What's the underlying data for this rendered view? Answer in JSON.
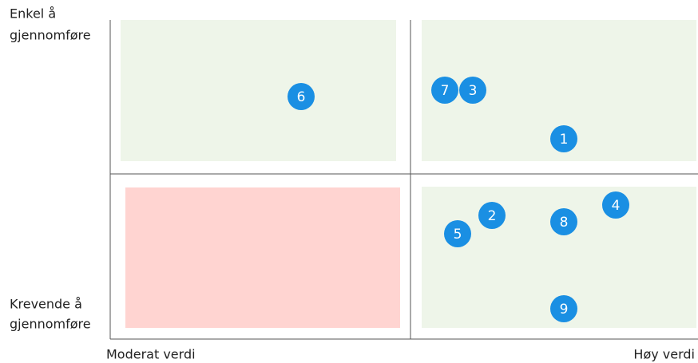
{
  "axes": {
    "y_top": [
      "Enkel å",
      "gjennomføre"
    ],
    "y_bottom": [
      "Krevende å",
      "gjennomføre"
    ],
    "x_left": "Moderat verdi",
    "x_right": "Høy verdi"
  },
  "nodes": [
    {
      "label": "1"
    },
    {
      "label": "2"
    },
    {
      "label": "3"
    },
    {
      "label": "4"
    },
    {
      "label": "5"
    },
    {
      "label": "6"
    },
    {
      "label": "7"
    },
    {
      "label": "8"
    },
    {
      "label": "9"
    }
  ]
}
